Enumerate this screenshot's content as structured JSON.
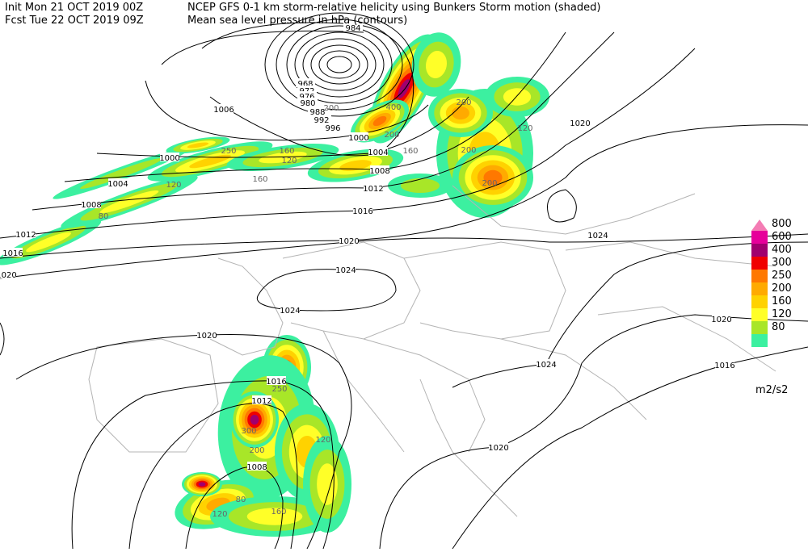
{
  "header": {
    "init": "Init  Mon 21 OCT 2019 00Z",
    "title": "NCEP GFS 0-1 km storm-relative helicity using Bunkers Storm motion (shaded)",
    "fcst": "Fcst Tue 22 OCT 2019 09Z",
    "subtitle": "Mean sea level pressure in hPa (contours)"
  },
  "legend": {
    "items": [
      {
        "value": 800,
        "color": "#f47cb4"
      },
      {
        "value": 600,
        "color": "#e6009a"
      },
      {
        "value": 400,
        "color": "#a0006e"
      },
      {
        "value": 300,
        "color": "#f00000"
      },
      {
        "value": 250,
        "color": "#ff7800"
      },
      {
        "value": 200,
        "color": "#ffaa00"
      },
      {
        "value": 160,
        "color": "#ffd200"
      },
      {
        "value": 120,
        "color": "#ffff28"
      },
      {
        "value": 80,
        "color": "#a8e628"
      }
    ],
    "base_color": "#3cf0a0",
    "unit": "m2/s2"
  },
  "contour_labels": [
    984,
    968,
    972,
    976,
    980,
    988,
    992,
    996,
    1000,
    1004,
    1008,
    1012,
    1016,
    1020,
    1024,
    1024,
    1020,
    1016,
    1012,
    1008,
    1020,
    1024,
    1024,
    1020,
    1020,
    1016,
    1006,
    1000,
    1004,
    1008,
    1012,
    1016,
    1020
  ],
  "shade_labels": [
    250,
    120,
    160,
    120,
    80,
    160,
    200,
    400,
    200,
    160,
    200,
    120,
    200,
    200,
    250,
    300,
    200,
    120,
    160,
    120,
    80
  ]
}
